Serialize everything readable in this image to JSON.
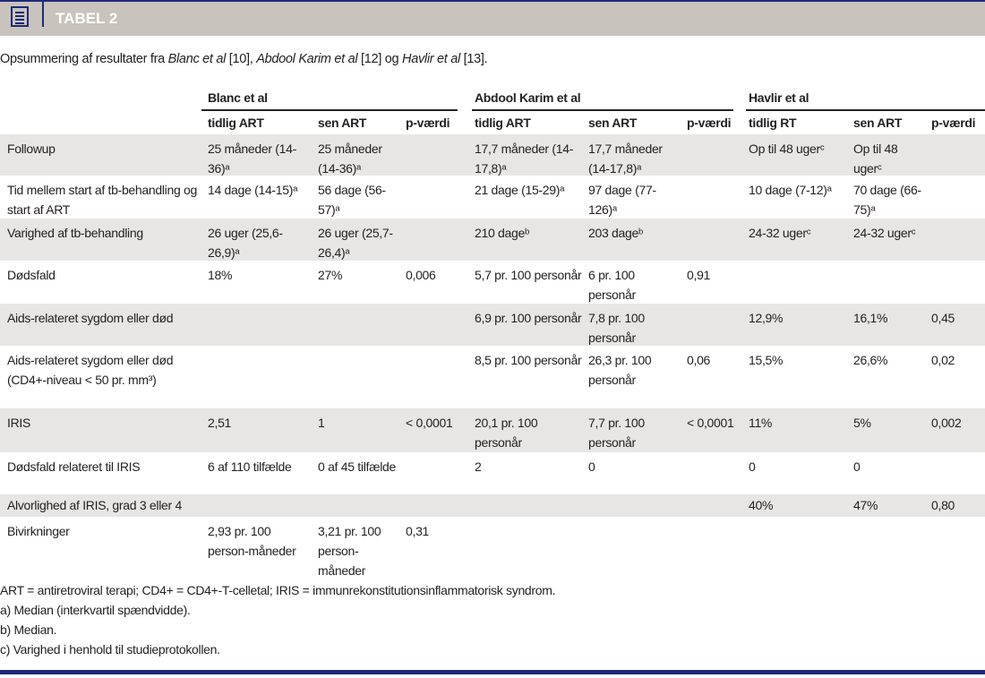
{
  "header": {
    "title": "TABEL 2",
    "icon": "table-icon"
  },
  "caption": {
    "p1": "Opsummering af resultater fra ",
    "a1": "Blanc et al",
    "r1": " [10], ",
    "a2": "Abdool Karim et al",
    "r2": " [12] og ",
    "a3": "Havlir et al",
    "r3": " [13]."
  },
  "groups": [
    "Blanc et al",
    "Abdool Karim et al",
    "Havlir et al"
  ],
  "subheaders": [
    "tidlig ART",
    "sen ART",
    "p-værdi",
    "tidlig ART",
    "sen ART",
    "p-værdi",
    "tidlig RT",
    "sen ART",
    "p-værdi"
  ],
  "rows": [
    {
      "label": "Followup",
      "cells": [
        "25 måneder (14-36)ᵃ",
        "25 måneder (14-36)ᵃ",
        "",
        "17,7 måneder (14-17,8)ᵃ",
        "17,7 måneder (14-17,8)ᵃ",
        "",
        "Op til 48 ugerᶜ",
        "Op til 48 ugerᶜ",
        ""
      ]
    },
    {
      "label": "Tid mellem start af tb-behandling og start af ART",
      "cells": [
        "14 dage (14-15)ᵃ",
        "56 dage (56-57)ᵃ",
        "",
        "21 dage (15-29)ᵃ",
        "97 dage (77-126)ᵃ",
        "",
        "10 dage (7-12)ᵃ",
        "70 dage (66-75)ᵃ",
        ""
      ]
    },
    {
      "label": "Varighed af tb-behandling",
      "cells": [
        "26 uger (25,6-26,9)ᵃ",
        "26 uger (25,7-26,4)ᵃ",
        "",
        "210 dageᵇ",
        "203 dageᵇ",
        "",
        "24-32 ugerᶜ",
        "24-32 ugerᶜ",
        ""
      ]
    },
    {
      "label": "Dødsfald",
      "cells": [
        "18%",
        "27%",
        "0,006",
        "5,7 pr. 100 personår",
        "6 pr. 100 personår",
        "0,91",
        "",
        "",
        ""
      ]
    },
    {
      "label": "Aids-relateret sygdom eller død",
      "cells": [
        "",
        "",
        "",
        "6,9 pr. 100 personår",
        "7,8 pr. 100 personår",
        "",
        "12,9%",
        "16,1%",
        "0,45"
      ]
    },
    {
      "label": "Aids-relateret sygdom eller død (CD4+-niveau < 50 pr. mm³)",
      "cells": [
        "",
        "",
        "",
        "8,5 pr. 100 personår",
        "26,3 pr. 100 personår",
        "0,06",
        "15,5%",
        "26,6%",
        "0,02"
      ]
    },
    {
      "label": "IRIS",
      "cells": [
        "2,51",
        "1",
        "< 0,0001",
        "20,1 pr. 100 personår",
        "7,7 pr. 100 personår",
        "< 0,0001",
        "11%",
        "5%",
        "0,002"
      ]
    },
    {
      "label": "Dødsfald relateret til IRIS",
      "cells": [
        "6 af 110 tilfælde",
        "0 af 45 tilfælde",
        "",
        "2",
        "0",
        "",
        "0",
        "0",
        ""
      ]
    },
    {
      "label": "Alvorlighed af IRIS, grad 3 eller 4",
      "cells": [
        "",
        "",
        "",
        "",
        "",
        "",
        "40%",
        "47%",
        "0,80"
      ]
    },
    {
      "label": "Bivirkninger",
      "cells": [
        "2,93 pr. 100 person-måneder",
        "3,21 pr. 100 person-måneder",
        "0,31",
        "",
        "",
        "",
        "",
        "",
        ""
      ]
    }
  ],
  "footnotes": [
    "ART = antiretroviral terapi; CD4+ = CD4+-T-celletal; IRIS = immunrekonstitutionsinflammatorisk syndrom.",
    "a) Median (interkvartil spændvidde).",
    "b) Median.",
    "c) Varighed i henhold til studieprotokollen."
  ]
}
